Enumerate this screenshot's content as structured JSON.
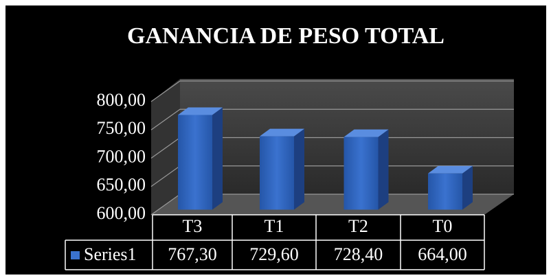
{
  "chart_data": {
    "type": "bar",
    "title": "GANANCIA DE PESO TOTAL",
    "categories": [
      "T3",
      "T1",
      "T2",
      "T0"
    ],
    "series": [
      {
        "name": "Series1",
        "color": "#2f62b7",
        "values": [
          767.3,
          729.6,
          728.4,
          664.0
        ],
        "value_labels": [
          "767,30",
          "729,60",
          "728,40",
          "664,00"
        ]
      }
    ],
    "ylim": [
      600,
      800
    ],
    "yticks": [
      {
        "value": 600,
        "label": "600,00"
      },
      {
        "value": 650,
        "label": "650,00"
      },
      {
        "value": 700,
        "label": "700,00"
      },
      {
        "value": 750,
        "label": "750,00"
      },
      {
        "value": 800,
        "label": "800,00"
      }
    ],
    "grid": true,
    "legend": "bottom"
  }
}
